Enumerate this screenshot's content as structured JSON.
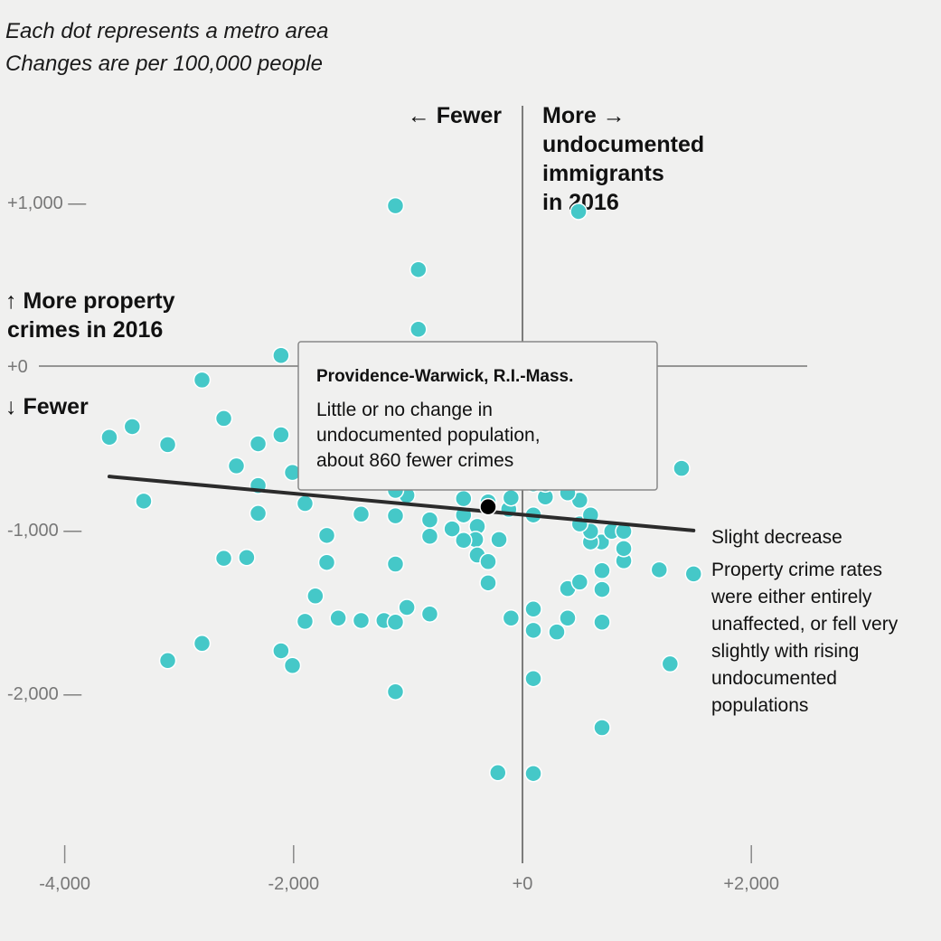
{
  "notes": [
    "Each dot represents a metro area",
    "Changes are per 100,000 people"
  ],
  "colors": {
    "dot": "#45c8c8",
    "highlight": "#000000",
    "trend": "#2b2b2b",
    "axis": "#777777",
    "background": "#f0f0ef"
  },
  "chart_data": {
    "type": "scatter",
    "xlim": [
      -4000,
      2500
    ],
    "ylim": [
      -2800,
      1300
    ],
    "x_ticks": [
      -4000,
      -2000,
      0,
      2000
    ],
    "x_tick_labels": [
      "-4,000",
      "-2,000",
      "+0",
      "+2,000"
    ],
    "y_ticks": [
      1000,
      0,
      -1000,
      -2000
    ],
    "y_tick_labels": [
      "+1,000 —",
      "+0",
      "-1,000 —",
      "-2,000 —"
    ],
    "x_annotation_left": "← Fewer",
    "x_annotation_right": [
      "More →",
      "undocumented",
      "immigrants",
      "in 2016"
    ],
    "y_annotation_up": [
      "↑ More property",
      "crimes in 2016"
    ],
    "y_annotation_down": "↓ Fewer",
    "grid": false,
    "points": [
      [
        -1110,
        980
      ],
      [
        490,
        945
      ],
      [
        -910,
        590
      ],
      [
        -910,
        225
      ],
      [
        -2110,
        65
      ],
      [
        -2800,
        -85
      ],
      [
        -2610,
        -320
      ],
      [
        -3610,
        -435
      ],
      [
        -3410,
        -370
      ],
      [
        -3100,
        -480
      ],
      [
        -2310,
        -475
      ],
      [
        -2110,
        -420
      ],
      [
        -2500,
        -610
      ],
      [
        -2310,
        -730
      ],
      [
        -2010,
        -650
      ],
      [
        -3310,
        -825
      ],
      [
        -2310,
        -900
      ],
      [
        -1900,
        -840
      ],
      [
        -1410,
        -905
      ],
      [
        -1110,
        -915
      ],
      [
        -1710,
        -1035
      ],
      [
        -810,
        -940
      ],
      [
        -810,
        -1040
      ],
      [
        -2610,
        -1175
      ],
      [
        -2410,
        -1170
      ],
      [
        -1710,
        -1200
      ],
      [
        -1110,
        -1210
      ],
      [
        -1810,
        -1405
      ],
      [
        -1900,
        -1560
      ],
      [
        -1610,
        -1540
      ],
      [
        -1410,
        -1555
      ],
      [
        -1210,
        -1555
      ],
      [
        -1110,
        -1565
      ],
      [
        -1010,
        -1475
      ],
      [
        -810,
        -1515
      ],
      [
        -2800,
        -1695
      ],
      [
        -3100,
        -1800
      ],
      [
        -2110,
        -1740
      ],
      [
        -2010,
        -1830
      ],
      [
        -1110,
        -1990
      ],
      [
        -215,
        -2485
      ],
      [
        95,
        -2490
      ],
      [
        95,
        -1910
      ],
      [
        -100,
        -1540
      ],
      [
        95,
        -1615
      ],
      [
        95,
        -1485
      ],
      [
        300,
        -1625
      ],
      [
        395,
        -1540
      ],
      [
        395,
        -1360
      ],
      [
        500,
        -1320
      ],
      [
        695,
        -1250
      ],
      [
        695,
        -1365
      ],
      [
        695,
        -1565
      ],
      [
        1195,
        -1245
      ],
      [
        1290,
        -1820
      ],
      [
        695,
        -2210
      ],
      [
        1390,
        -625
      ],
      [
        1495,
        -1270
      ],
      [
        885,
        -1190
      ],
      [
        885,
        -1115
      ],
      [
        690,
        -1075
      ],
      [
        595,
        -1075
      ],
      [
        595,
        -1010
      ],
      [
        780,
        -1010
      ],
      [
        885,
        -1010
      ],
      [
        500,
        -965
      ],
      [
        595,
        -910
      ],
      [
        500,
        -820
      ],
      [
        200,
        -800
      ],
      [
        95,
        -910
      ],
      [
        -120,
        -875
      ],
      [
        -100,
        -805
      ],
      [
        -515,
        -810
      ],
      [
        -615,
        -995
      ],
      [
        -515,
        -910
      ],
      [
        -395,
        -980
      ],
      [
        -410,
        -1060
      ],
      [
        -515,
        -1065
      ],
      [
        -395,
        -1155
      ],
      [
        -300,
        -1195
      ],
      [
        -300,
        -1325
      ],
      [
        -205,
        -1060
      ],
      [
        -1010,
        -745
      ],
      [
        -1010,
        -790
      ],
      [
        -1110,
        -760
      ],
      [
        95,
        -720
      ],
      [
        200,
        -720
      ],
      [
        395,
        -775
      ],
      [
        -300,
        -830
      ]
    ],
    "highlight": {
      "name": "Providence-Warwick, R.I.-Mass.",
      "x": -300,
      "y": -860,
      "description": [
        "Little or no change in",
        "undocumented population,",
        "about 860 fewer crimes"
      ]
    },
    "trendline": {
      "x": [
        -3610,
        1495
      ],
      "y": [
        -675,
        -1005
      ]
    },
    "trend_label": "Slight decrease",
    "trend_description": [
      "Property crime rates",
      "were either entirely",
      "unaffected, or fell very",
      "slightly with rising",
      "undocumented",
      "populations"
    ]
  }
}
